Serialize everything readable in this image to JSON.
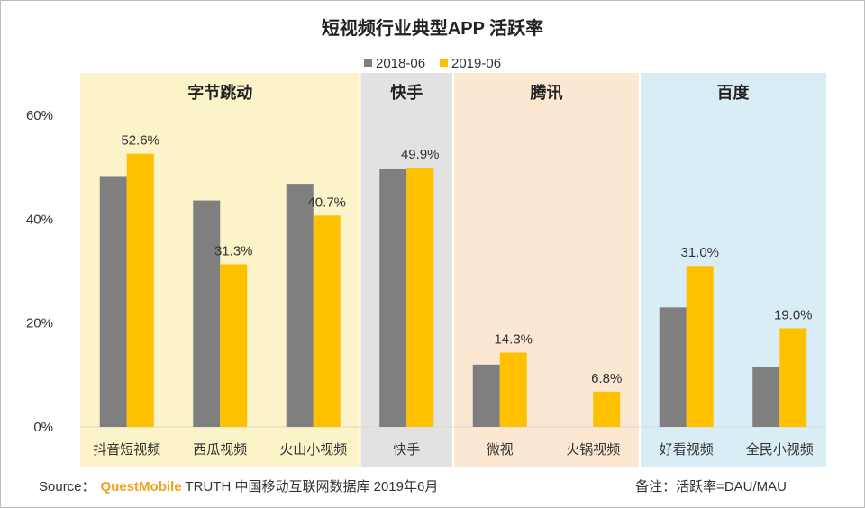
{
  "title": "短视频行业典型APP 活跃率",
  "colors": {
    "series_2018": "#7f7f7f",
    "series_2019": "#ffc000",
    "bg_bytedance": "#fdf3c8",
    "bg_kuaishou": "#e2e2e2",
    "bg_tencent": "#fce8d2",
    "bg_baidu": "#d9edf6"
  },
  "groups": [
    {
      "name": "字节跳动",
      "apps": [
        "抖音短视频",
        "西瓜视频",
        "火山小视频"
      ]
    },
    {
      "name": "快手",
      "apps": [
        "快手"
      ]
    },
    {
      "name": "腾讯",
      "apps": [
        "微视",
        "火锅视频"
      ]
    },
    {
      "name": "百度",
      "apps": [
        "好看视频",
        "全民小视频"
      ]
    }
  ],
  "chart_data": {
    "type": "bar",
    "title": "短视频行业典型APP 活跃率",
    "categories": [
      "抖音短视频",
      "西瓜视频",
      "火山小视频",
      "快手",
      "微视",
      "火锅视频",
      "好看视频",
      "全民小视频"
    ],
    "series": [
      {
        "name": "2018-06",
        "values": [
          48.3,
          43.6,
          46.8,
          49.6,
          12.0,
          null,
          23.0,
          11.5
        ]
      },
      {
        "name": "2019-06",
        "values": [
          52.6,
          31.3,
          40.7,
          49.9,
          14.3,
          6.8,
          31.0,
          19.0
        ]
      }
    ],
    "data_labels": {
      "2019-06": [
        "52.6%",
        "31.3%",
        "40.7%",
        "49.9%",
        "14.3%",
        "6.8%",
        "31.0%",
        "19.0%"
      ]
    },
    "yticks": [
      "0%",
      "20%",
      "40%",
      "60%"
    ],
    "ylim": [
      0,
      60
    ],
    "legend": "top-center",
    "grid": false
  },
  "footer": {
    "source_prefix": "Source：",
    "brand": "QuestMobile",
    "source_text": "TRUTH 中国移动互联网数据库 2019年6月",
    "note": "备注：活跃率=DAU/MAU"
  }
}
